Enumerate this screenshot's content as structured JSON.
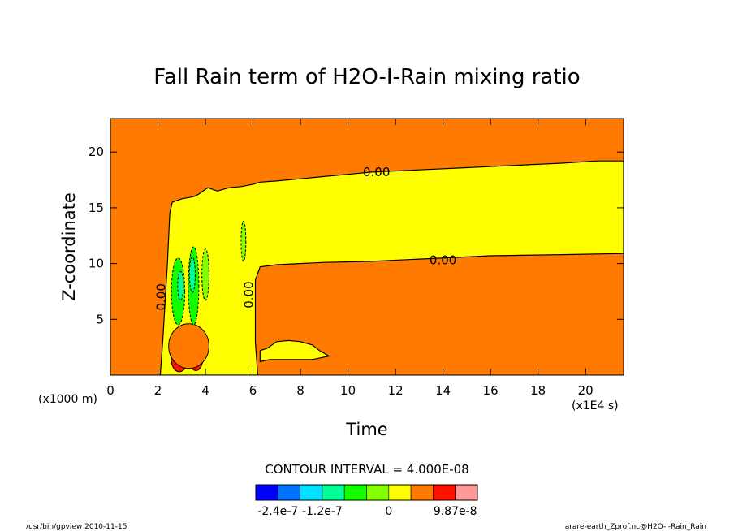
{
  "chart_data": {
    "type": "heatmap",
    "title": "Fall Rain term of H2O-I-Rain mixing ratio",
    "xlabel": "Time",
    "ylabel": "Z-coordinate",
    "x_unit": "(x1E4 s)",
    "y_unit": "(x1000 m)",
    "xlim": [
      0,
      21.6
    ],
    "ylim": [
      0,
      23
    ],
    "x_ticks": [
      0,
      2,
      4,
      6,
      8,
      10,
      12,
      14,
      16,
      18,
      20
    ],
    "y_ticks": [
      5,
      10,
      15,
      20
    ],
    "x_tick_labels": [
      "0",
      "2",
      "4",
      "6",
      "8",
      "10",
      "12",
      "14",
      "16",
      "18",
      "20"
    ],
    "y_tick_labels": [
      "5",
      "10",
      "15",
      "20"
    ],
    "contour_interval": "CONTOUR INTERVAL = 4.000E-08",
    "contour_labels": [
      {
        "text": "0.00",
        "x": 11.2,
        "y": 18.2
      },
      {
        "text": "0.00",
        "x": 14.0,
        "y": 10.3
      },
      {
        "text": "0.00",
        "x": 6.0,
        "y": 7.2
      },
      {
        "text": "0.00",
        "x": 2.3,
        "y": 7.0
      }
    ],
    "regions": {
      "upper_boundary": [
        [
          2.5,
          14.5
        ],
        [
          2.6,
          15.5
        ],
        [
          3,
          15.8
        ],
        [
          3.5,
          16
        ],
        [
          3.7,
          16.2
        ],
        [
          4.1,
          16.8
        ],
        [
          4.5,
          16.5
        ],
        [
          5,
          16.8
        ],
        [
          5.5,
          16.9
        ],
        [
          6,
          17.1
        ],
        [
          6.3,
          17.3
        ],
        [
          7,
          17.4
        ],
        [
          8,
          17.6
        ],
        [
          9,
          17.8
        ],
        [
          10,
          18
        ],
        [
          11,
          18.2
        ],
        [
          13,
          18.4
        ],
        [
          15,
          18.6
        ],
        [
          17,
          18.8
        ],
        [
          19,
          19
        ],
        [
          20.5,
          19.2
        ],
        [
          21.6,
          19.2
        ]
      ],
      "lower_boundary": [
        [
          21.6,
          10.9
        ],
        [
          19,
          10.8
        ],
        [
          16,
          10.7
        ],
        [
          13,
          10.4
        ],
        [
          11,
          10.2
        ],
        [
          9,
          10.1
        ],
        [
          7,
          9.9
        ],
        [
          6.3,
          9.7
        ],
        [
          6.1,
          8.5
        ],
        [
          6.1,
          5
        ],
        [
          6.1,
          3
        ],
        [
          6.2,
          0
        ],
        [
          2.1,
          0
        ],
        [
          2.2,
          3
        ],
        [
          2.4,
          10
        ],
        [
          2.5,
          14.5
        ]
      ],
      "cloud_boundary": [
        [
          6.3,
          2.2
        ],
        [
          6.6,
          2.4
        ],
        [
          7.0,
          3.0
        ],
        [
          7.5,
          3.1
        ],
        [
          8.0,
          3.0
        ],
        [
          8.5,
          2.7
        ],
        [
          8.8,
          2.2
        ],
        [
          9.2,
          1.7
        ],
        [
          8.5,
          1.4
        ],
        [
          7.5,
          1.4
        ],
        [
          6.7,
          1.4
        ],
        [
          6.3,
          1.2
        ]
      ],
      "negative_cores": [
        {
          "x": 2.85,
          "y": 7.5,
          "rx": 0.28,
          "ry": 3.0,
          "level": "-8e-8"
        },
        {
          "x": 3.5,
          "y": 8.0,
          "rx": 0.22,
          "ry": 3.5,
          "level": "-8e-8"
        },
        {
          "x": 4.0,
          "y": 9.0,
          "rx": 0.15,
          "ry": 2.3,
          "level": "-4e-8"
        },
        {
          "x": 2.95,
          "y": 8.0,
          "rx": 0.12,
          "ry": 1.3,
          "level": "-1.2e-7"
        },
        {
          "x": 3.45,
          "y": 9.0,
          "rx": 0.12,
          "ry": 1.6,
          "level": "-1.2e-7"
        },
        {
          "x": 5.6,
          "y": 12.0,
          "rx": 0.1,
          "ry": 1.8,
          "level": "-4e-8"
        }
      ],
      "positive_cores": [
        {
          "x": 2.9,
          "y": 1.5,
          "rx": 0.35,
          "ry": 1.2,
          "level": "8e-8"
        },
        {
          "x": 3.6,
          "y": 1.6,
          "rx": 0.3,
          "ry": 1.2,
          "level": "8e-8"
        },
        {
          "x": 3.3,
          "y": 2.6,
          "rx": 0.85,
          "ry": 2.0,
          "level": "4e-8"
        }
      ]
    },
    "colorbar": {
      "colors": [
        "#0000ff",
        "#0073ff",
        "#00e1ff",
        "#00ff96",
        "#12ff00",
        "#84ff00",
        "#ffff00",
        "#ff7a00",
        "#ff1100",
        "#ff9999"
      ],
      "labels": [
        "-2.4e-7",
        "-1.2e-7",
        "0",
        "9.87e-8"
      ],
      "label_positions": [
        1,
        3,
        6,
        9
      ]
    },
    "level_colors": {
      "background": "#ff7a00",
      "zero": "#ffff00",
      "-4e-8": "#84ff00",
      "-8e-8": "#12ff00",
      "-1.2e-7": "#00ff96",
      "4e-8": "#ff7a00",
      "8e-8": "#ff1100"
    }
  },
  "footer": {
    "left": "/usr/bin/gpview  2010-11-15",
    "right": "arare-earth_Zprof.nc@H2O-l-Rain_Rain"
  }
}
